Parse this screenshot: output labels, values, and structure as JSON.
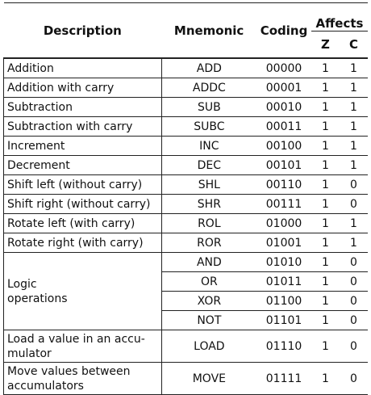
{
  "table": {
    "header": {
      "description": "Description",
      "mnemonic": "Mnemonic",
      "coding": "Coding",
      "affects": "Affects",
      "z": "Z",
      "c": "C"
    },
    "rows": [
      {
        "description": "Addition",
        "entries": [
          {
            "mnemonic": "ADD",
            "coding": "00000",
            "z": 1,
            "c": 1
          }
        ]
      },
      {
        "description": "Addition with carry",
        "entries": [
          {
            "mnemonic": "ADDC",
            "coding": "00001",
            "z": 1,
            "c": 1
          }
        ]
      },
      {
        "description": "Subtraction",
        "entries": [
          {
            "mnemonic": "SUB",
            "coding": "00010",
            "z": 1,
            "c": 1
          }
        ]
      },
      {
        "description": "Subtraction with carry",
        "entries": [
          {
            "mnemonic": "SUBC",
            "coding": "00011",
            "z": 1,
            "c": 1
          }
        ]
      },
      {
        "description": "Increment",
        "entries": [
          {
            "mnemonic": "INC",
            "coding": "00100",
            "z": 1,
            "c": 1
          }
        ]
      },
      {
        "description": "Decrement",
        "entries": [
          {
            "mnemonic": "DEC",
            "coding": "00101",
            "z": 1,
            "c": 1
          }
        ]
      },
      {
        "description": "Shift left (without carry)",
        "entries": [
          {
            "mnemonic": "SHL",
            "coding": "00110",
            "z": 1,
            "c": 0
          }
        ]
      },
      {
        "description": "Shift right (without carry)",
        "entries": [
          {
            "mnemonic": "SHR",
            "coding": "00111",
            "z": 1,
            "c": 0
          }
        ]
      },
      {
        "description": "Rotate left (with carry)",
        "entries": [
          {
            "mnemonic": "ROL",
            "coding": "01000",
            "z": 1,
            "c": 1
          }
        ]
      },
      {
        "description": "Rotate right (with carry)",
        "entries": [
          {
            "mnemonic": "ROR",
            "coding": "01001",
            "z": 1,
            "c": 1
          }
        ]
      },
      {
        "description": "Logic\noperations",
        "entries": [
          {
            "mnemonic": "AND",
            "coding": "01010",
            "z": 1,
            "c": 0
          },
          {
            "mnemonic": "OR",
            "coding": "01011",
            "z": 1,
            "c": 0
          },
          {
            "mnemonic": "XOR",
            "coding": "01100",
            "z": 1,
            "c": 0
          },
          {
            "mnemonic": "NOT",
            "coding": "01101",
            "z": 1,
            "c": 0
          }
        ]
      },
      {
        "description": "Load a value in an accu-\nmulator",
        "entries": [
          {
            "mnemonic": "LOAD",
            "coding": "01110",
            "z": 1,
            "c": 0
          }
        ]
      },
      {
        "description": "Move values between\naccumulators",
        "entries": [
          {
            "mnemonic": "MOVE",
            "coding": "01111",
            "z": 1,
            "c": 0
          }
        ]
      }
    ]
  }
}
